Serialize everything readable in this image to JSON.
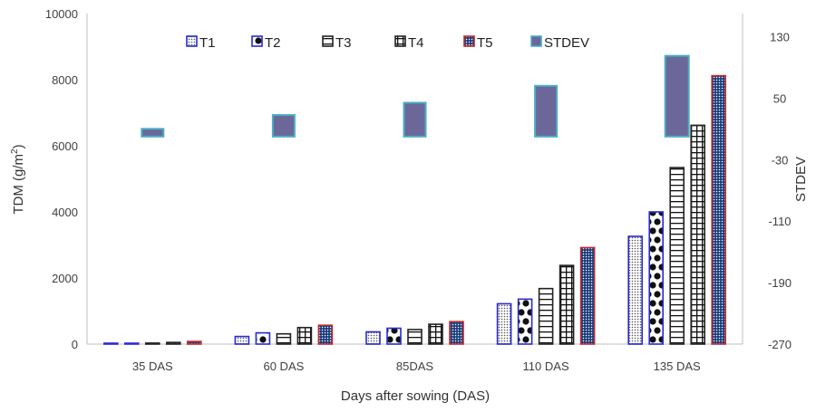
{
  "chart_data": {
    "type": "bar",
    "title": "",
    "xlabel": "Days after sowing (DAS)",
    "ylabel": "TDM (g/m",
    "ylabel_sup": "2",
    "ylabel_close": ")",
    "y2label": "STDEV",
    "categories": [
      "35 DAS",
      "60 DAS",
      "85DAS",
      "110  DAS",
      "135 DAS"
    ],
    "ylim": [
      0,
      10000
    ],
    "yticks": [
      "0",
      "2000",
      "4000",
      "6000",
      "8000",
      "10000"
    ],
    "y2lim": [
      -270,
      160
    ],
    "y2ticks": [
      "-270",
      "-190",
      "-110",
      "-30",
      "50",
      "130"
    ],
    "legend_position": "top",
    "grid": false,
    "series": [
      {
        "name": "T1",
        "values": [
          20,
          230,
          370,
          1220,
          3260
        ],
        "pattern": "dots",
        "border": "#2a2ad0"
      },
      {
        "name": "T2",
        "values": [
          25,
          340,
          480,
          1360,
          4000
        ],
        "pattern": "bigdots",
        "border": "#2a2ad0"
      },
      {
        "name": "T3",
        "values": [
          30,
          310,
          440,
          1680,
          5340
        ],
        "pattern": "hlines",
        "border": "#222222"
      },
      {
        "name": "T4",
        "values": [
          50,
          500,
          600,
          2380,
          6620
        ],
        "pattern": "grid",
        "border": "#222222"
      },
      {
        "name": "T5",
        "values": [
          80,
          570,
          680,
          2920,
          8120
        ],
        "pattern": "bluedots",
        "border": "#c0282d"
      }
    ],
    "stdev": {
      "name": "STDEV",
      "base": 0,
      "values": [
        10,
        28,
        44,
        66,
        105
      ],
      "color": "#6b6799",
      "border": "#4bacc6"
    }
  }
}
